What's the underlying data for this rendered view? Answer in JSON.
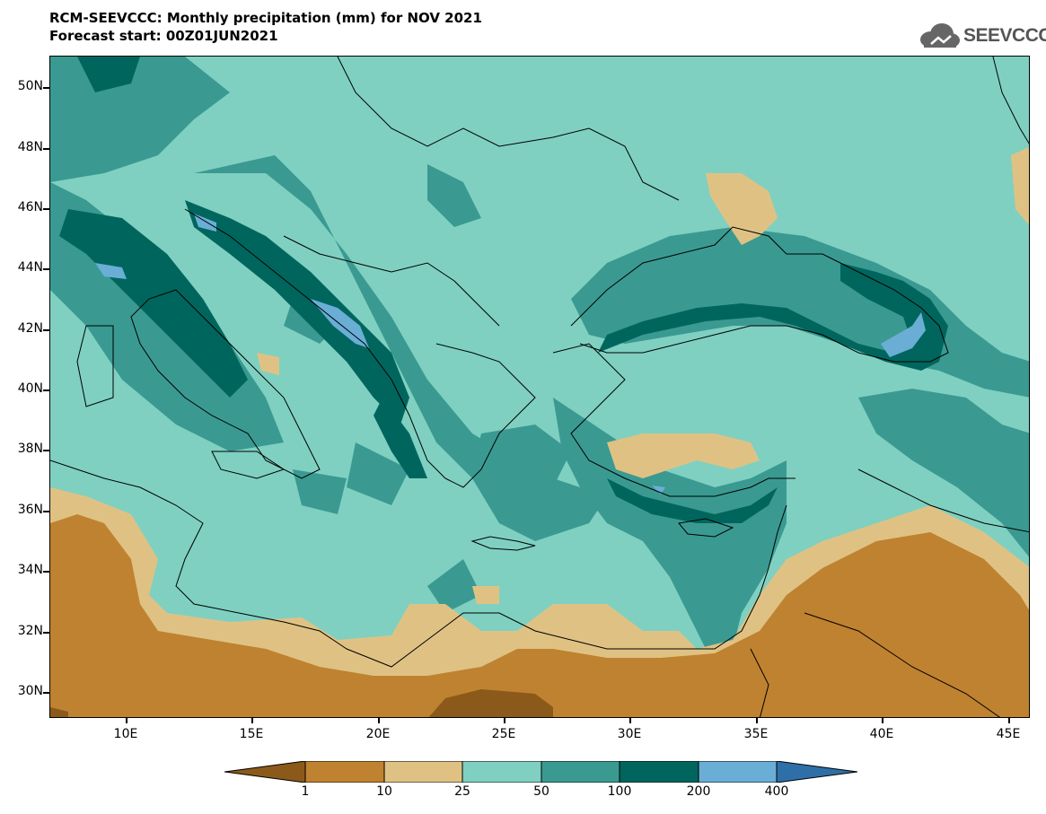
{
  "header": {
    "title_line1": "RCM-SEEVCCC: Monthly precipitation (mm) for NOV 2021",
    "title_line2": "Forecast start: 00Z01JUN2021",
    "logo_text": "SEEVCCC"
  },
  "axes": {
    "lat_labels": [
      "50N",
      "48N",
      "46N",
      "44N",
      "42N",
      "40N",
      "38N",
      "36N",
      "34N",
      "32N",
      "30N"
    ],
    "lon_labels": [
      "10E",
      "15E",
      "20E",
      "25E",
      "30E",
      "35E",
      "40E",
      "45E"
    ]
  },
  "colorbar": {
    "labels": [
      "1",
      "10",
      "25",
      "50",
      "100",
      "200",
      "400"
    ],
    "colors": [
      "#8b5a1a",
      "#bf8230",
      "#dfc283",
      "#7fd0c1",
      "#3a9a91",
      "#00665d",
      "#6aaed6",
      "#2f6fa8"
    ]
  }
}
